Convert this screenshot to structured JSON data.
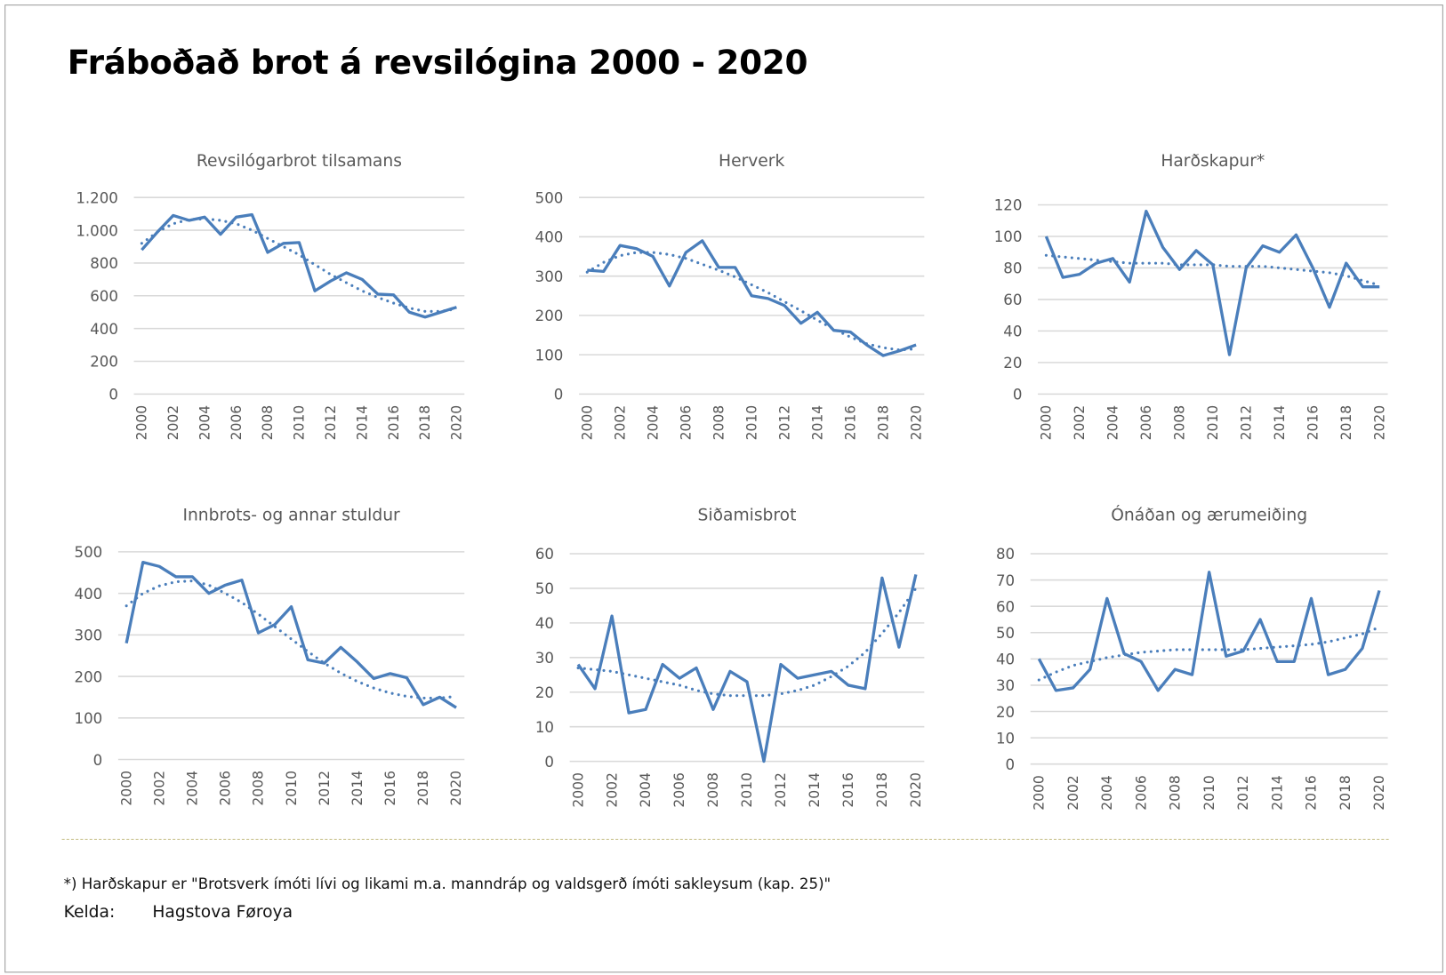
{
  "title": "Fráboðað brot á revsilógina 2000 - 2020",
  "footnote": "*) Harðskapur er \"Brotsverk ímóti lívi og likami m.a. manndráp og valdsgerð ímóti sakleysum (kap. 25)\"",
  "source_label": "Kelda:",
  "source_value": "Hagstova Føroya",
  "colors": {
    "line": "#4a7ebb",
    "grid": "#d9d9d9",
    "divider": "#c8c08a"
  },
  "chart_data": [
    {
      "type": "line",
      "title": "Revsilógarbrot tilsamans",
      "ylim": [
        0,
        1200
      ],
      "yticks": [
        0,
        200,
        400,
        600,
        800,
        1000,
        1200
      ],
      "ytick_labels": [
        "0",
        "200",
        "400",
        "600",
        "800",
        "1.000",
        "1.200"
      ],
      "x": [
        2000,
        2001,
        2002,
        2003,
        2004,
        2005,
        2006,
        2007,
        2008,
        2009,
        2010,
        2011,
        2012,
        2013,
        2014,
        2015,
        2016,
        2017,
        2018,
        2019,
        2020
      ],
      "xtick_labels": [
        "2000",
        "2002",
        "2004",
        "2006",
        "2008",
        "2010",
        "2012",
        "2014",
        "2016",
        "2018",
        "2020"
      ],
      "series": [
        {
          "name": "actual",
          "style": "solid",
          "values": [
            880,
            990,
            1090,
            1060,
            1080,
            975,
            1080,
            1095,
            865,
            920,
            925,
            630,
            690,
            740,
            700,
            610,
            605,
            500,
            470,
            500,
            530
          ]
        },
        {
          "name": "trend",
          "style": "dotted",
          "values": [
            920,
            990,
            1040,
            1065,
            1070,
            1060,
            1040,
            1000,
            950,
            900,
            850,
            790,
            730,
            680,
            630,
            590,
            555,
            525,
            505,
            505,
            520
          ]
        }
      ]
    },
    {
      "type": "line",
      "title": "Herverk",
      "ylim": [
        0,
        500
      ],
      "yticks": [
        0,
        100,
        200,
        300,
        400,
        500
      ],
      "ytick_labels": [
        "0",
        "100",
        "200",
        "300",
        "400",
        "500"
      ],
      "x": [
        2000,
        2001,
        2002,
        2003,
        2004,
        2005,
        2006,
        2007,
        2008,
        2009,
        2010,
        2011,
        2012,
        2013,
        2014,
        2015,
        2016,
        2017,
        2018,
        2019,
        2020
      ],
      "xtick_labels": [
        "2000",
        "2002",
        "2004",
        "2006",
        "2008",
        "2010",
        "2012",
        "2014",
        "2016",
        "2018",
        "2020"
      ],
      "series": [
        {
          "name": "actual",
          "style": "solid",
          "values": [
            315,
            312,
            378,
            370,
            350,
            275,
            360,
            390,
            322,
            322,
            250,
            243,
            225,
            180,
            208,
            162,
            158,
            125,
            98,
            110,
            125
          ]
        },
        {
          "name": "trend",
          "style": "dotted",
          "values": [
            310,
            335,
            352,
            360,
            360,
            355,
            345,
            330,
            315,
            298,
            278,
            258,
            235,
            212,
            188,
            165,
            145,
            128,
            118,
            112,
            115
          ]
        }
      ]
    },
    {
      "type": "line",
      "title": "Harðskapur*",
      "ylim": [
        0,
        120
      ],
      "yticks": [
        0,
        20,
        40,
        60,
        80,
        100,
        120
      ],
      "ytick_labels": [
        "0",
        "20",
        "40",
        "60",
        "80",
        "100",
        "120"
      ],
      "x": [
        2000,
        2001,
        2002,
        2003,
        2004,
        2005,
        2006,
        2007,
        2008,
        2009,
        2010,
        2011,
        2012,
        2013,
        2014,
        2015,
        2016,
        2017,
        2018,
        2019,
        2020
      ],
      "xtick_labels": [
        "2000",
        "2002",
        "2004",
        "2006",
        "2008",
        "2010",
        "2012",
        "2014",
        "2016",
        "2018",
        "2020"
      ],
      "series": [
        {
          "name": "actual",
          "style": "solid",
          "values": [
            100,
            74,
            76,
            83,
            86,
            71,
            116,
            93,
            79,
            91,
            82,
            25,
            80,
            94,
            90,
            101,
            80,
            55,
            83,
            68,
            68
          ]
        },
        {
          "name": "trend",
          "style": "dotted",
          "values": [
            88,
            87,
            86,
            85,
            84,
            83,
            83,
            83,
            82,
            82,
            82,
            81,
            81,
            81,
            80,
            79,
            78,
            77,
            75,
            72,
            69
          ]
        }
      ]
    },
    {
      "type": "line",
      "title": "Innbrots- og annar stuldur",
      "ylim": [
        0,
        500
      ],
      "yticks": [
        0,
        100,
        200,
        300,
        400,
        500
      ],
      "ytick_labels": [
        "0",
        "100",
        "200",
        "300",
        "400",
        "500"
      ],
      "x": [
        2000,
        2001,
        2002,
        2003,
        2004,
        2005,
        2006,
        2007,
        2008,
        2009,
        2010,
        2011,
        2012,
        2013,
        2014,
        2015,
        2016,
        2017,
        2018,
        2019,
        2020
      ],
      "xtick_labels": [
        "2000",
        "2002",
        "2004",
        "2006",
        "2008",
        "2010",
        "2012",
        "2014",
        "2016",
        "2018",
        "2020"
      ],
      "series": [
        {
          "name": "actual",
          "style": "solid",
          "values": [
            280,
            475,
            465,
            440,
            440,
            400,
            420,
            432,
            305,
            325,
            368,
            240,
            232,
            270,
            235,
            195,
            207,
            197,
            132,
            150,
            125
          ]
        },
        {
          "name": "trend",
          "style": "dotted",
          "values": [
            370,
            400,
            418,
            428,
            430,
            420,
            400,
            378,
            350,
            320,
            290,
            260,
            232,
            208,
            188,
            172,
            160,
            152,
            148,
            148,
            152
          ]
        }
      ]
    },
    {
      "type": "line",
      "title": "Siðamisbrot",
      "ylim": [
        0,
        60
      ],
      "yticks": [
        0,
        10,
        20,
        30,
        40,
        50,
        60
      ],
      "ytick_labels": [
        "0",
        "10",
        "20",
        "30",
        "40",
        "50",
        "60"
      ],
      "x": [
        2000,
        2001,
        2002,
        2003,
        2004,
        2005,
        2006,
        2007,
        2008,
        2009,
        2010,
        2011,
        2012,
        2013,
        2014,
        2015,
        2016,
        2017,
        2018,
        2019,
        2020
      ],
      "xtick_labels": [
        "2000",
        "2002",
        "2004",
        "2006",
        "2008",
        "2010",
        "2012",
        "2014",
        "2016",
        "2018",
        "2020"
      ],
      "series": [
        {
          "name": "actual",
          "style": "solid",
          "values": [
            28,
            21,
            42,
            14,
            15,
            28,
            24,
            27,
            15,
            26,
            23,
            0,
            28,
            24,
            25,
            26,
            22,
            21,
            53,
            33,
            54
          ]
        },
        {
          "name": "trend",
          "style": "dotted",
          "values": [
            27,
            26.5,
            26,
            25,
            24,
            23,
            22,
            20.5,
            19.5,
            19,
            19,
            19,
            19.5,
            20.5,
            22,
            24.5,
            27.5,
            31.5,
            37,
            43,
            50
          ]
        }
      ]
    },
    {
      "type": "line",
      "title": "Ónáðan og ærumeiðing",
      "ylim": [
        0,
        80
      ],
      "yticks": [
        0,
        10,
        20,
        30,
        40,
        50,
        60,
        70,
        80
      ],
      "ytick_labels": [
        "0",
        "10",
        "20",
        "30",
        "40",
        "50",
        "60",
        "70",
        "80"
      ],
      "x": [
        2000,
        2001,
        2002,
        2003,
        2004,
        2005,
        2006,
        2007,
        2008,
        2009,
        2010,
        2011,
        2012,
        2013,
        2014,
        2015,
        2016,
        2017,
        2018,
        2019,
        2020
      ],
      "xtick_labels": [
        "2000",
        "2002",
        "2004",
        "2006",
        "2008",
        "2010",
        "2012",
        "2014",
        "2016",
        "2018",
        "2020"
      ],
      "series": [
        {
          "name": "actual",
          "style": "solid",
          "values": [
            40,
            28,
            29,
            36,
            63,
            42,
            39,
            28,
            36,
            34,
            73,
            41,
            43,
            55,
            39,
            39,
            63,
            34,
            36,
            44,
            66
          ]
        },
        {
          "name": "trend",
          "style": "dotted",
          "values": [
            32,
            35,
            37.5,
            39,
            40.5,
            41.5,
            42.5,
            43,
            43.5,
            43.5,
            43.5,
            43.5,
            43.5,
            44,
            44.5,
            45,
            45.5,
            46.5,
            48,
            49.5,
            52
          ]
        }
      ]
    }
  ]
}
